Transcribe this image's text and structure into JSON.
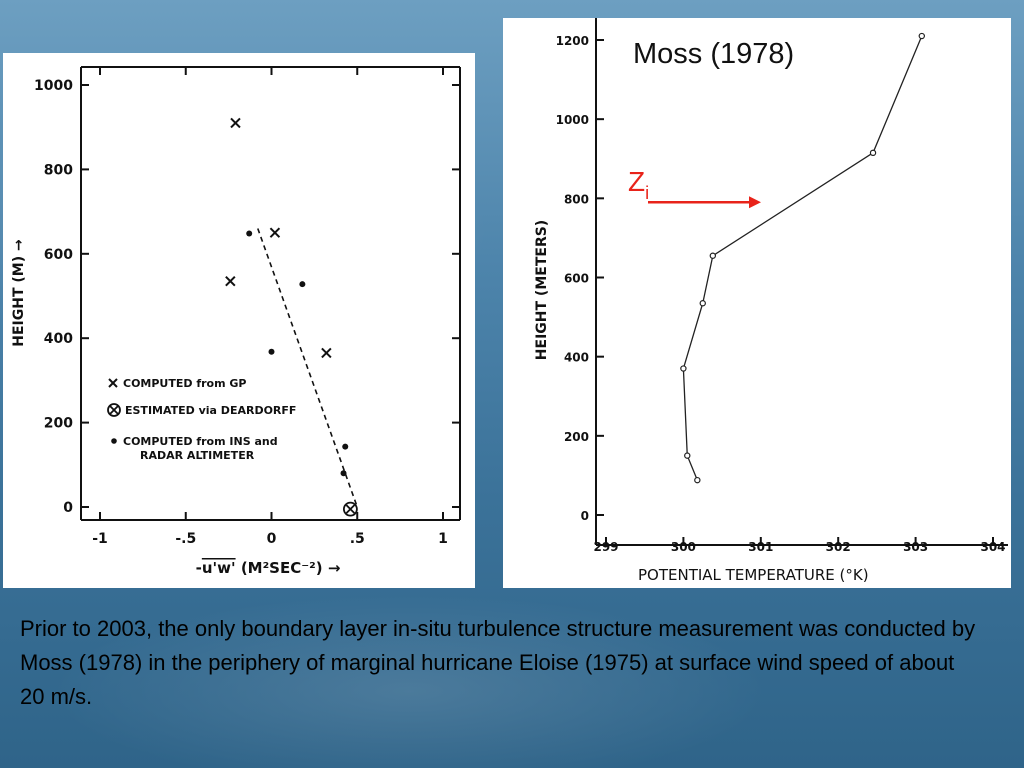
{
  "caption": "Prior to 2003, the only boundary layer in-situ turbulence structure measurement was conducted by Moss (1978) in the periphery of marginal hurricane Eloise (1975) at surface wind speed of about 20 m/s.",
  "colors": {
    "annotation_red": "#e8231a",
    "plot_ink": "#111111",
    "background": "#4d84ab"
  },
  "chart_data": [
    {
      "type": "scatter",
      "ylabel": "HEIGHT (M) →",
      "xlabel": "-u'w' (M²SEC⁻²) →",
      "xlabel_parts": {
        "prefix": "-",
        "overlined": "u'w'",
        "units": "(M²SEC⁻²)",
        "arrow": "→"
      },
      "xlim": [
        -1.0,
        1.0
      ],
      "ylim": [
        0,
        1000
      ],
      "xticks": [
        -1,
        -0.5,
        0,
        0.5,
        1
      ],
      "xtick_labels": [
        "-1",
        "-.5",
        "0",
        ".5",
        "1"
      ],
      "yticks": [
        0,
        200,
        400,
        600,
        800,
        1000
      ],
      "ytick_labels": [
        "0",
        "200",
        "400",
        "600",
        "800",
        "1000"
      ],
      "series": [
        {
          "name": "COMPUTED from GP",
          "marker": "x",
          "x": [
            -0.21,
            0.02,
            -0.24,
            0.32
          ],
          "y": [
            910,
            650,
            535,
            365
          ]
        },
        {
          "name": "ESTIMATED via DEARDORFF",
          "marker": "circled-x",
          "x": [
            0.46
          ],
          "y": [
            -5
          ]
        },
        {
          "name": "COMPUTED from INS and RADAR ALTIMETER",
          "marker": "dot",
          "x": [
            -0.13,
            0.18,
            0.0,
            0.43,
            0.42
          ],
          "y": [
            648,
            528,
            368,
            143,
            80
          ]
        }
      ],
      "fit_line": {
        "style": "dashed",
        "x": [
          -0.08,
          0.5
        ],
        "y": [
          660,
          0
        ]
      },
      "legend": {
        "placement": "lower-left",
        "entries": [
          "COMPUTED from GP",
          "ESTIMATED via DEARDORFF",
          "COMPUTED from INS and",
          "RADAR ALTIMETER"
        ]
      }
    },
    {
      "type": "line",
      "title": "Moss (1978)",
      "ylabel": "HEIGHT (METERS)",
      "xlabel": "POTENTIAL TEMPERATURE (°K)",
      "xlim": [
        299,
        304
      ],
      "ylim": [
        0,
        1200
      ],
      "xticks": [
        299,
        300,
        301,
        302,
        303,
        304
      ],
      "xtick_labels": [
        "299",
        "300",
        "301",
        "302",
        "303",
        "304"
      ],
      "yticks": [
        0,
        200,
        400,
        600,
        800,
        1000,
        1200
      ],
      "ytick_labels": [
        "0",
        "200",
        "400",
        "600",
        "800",
        "1000",
        "1200"
      ],
      "series": [
        {
          "marker": "open-circle",
          "x": [
            300.18,
            300.05,
            300.0,
            300.25,
            300.38,
            302.45,
            303.08
          ],
          "y": [
            88,
            150,
            370,
            535,
            655,
            915,
            1210
          ]
        }
      ],
      "annotation": {
        "label": "Z",
        "subscript": "i",
        "arrow_to_y": 790
      }
    }
  ]
}
